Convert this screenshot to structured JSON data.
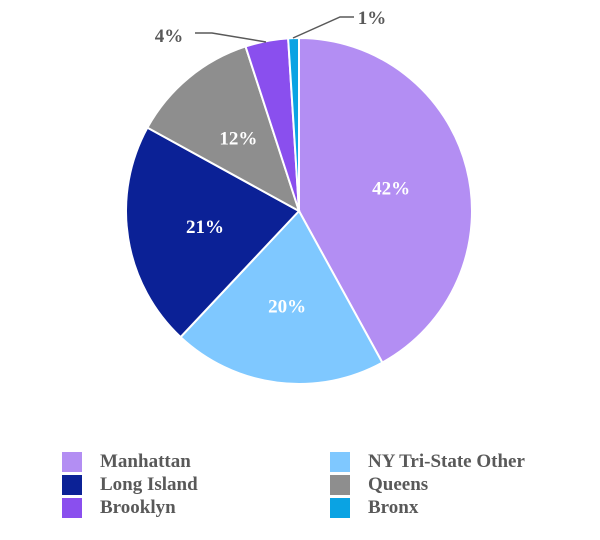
{
  "chart_data": {
    "type": "pie",
    "start_angle": "top, clockwise",
    "legend_position": "bottom",
    "slices": [
      {
        "name": "Manhattan",
        "value": 42,
        "label": "42%",
        "color": "#B38EF3",
        "label_color": "#FFFFFF"
      },
      {
        "name": "NY Tri-State Other",
        "value": 20,
        "label": "20%",
        "color": "#7FC8FF",
        "label_color": "#FFFFFF"
      },
      {
        "name": "Long Island",
        "value": 21,
        "label": "21%",
        "color": "#0B2196",
        "label_color": "#FFFFFF"
      },
      {
        "name": "Queens",
        "value": 12,
        "label": "12%",
        "color": "#8E8E8E",
        "label_color": "#FFFFFF"
      },
      {
        "name": "Brooklyn",
        "value": 4,
        "label": "4%",
        "color": "#8A4FEE",
        "label_color": "#595959"
      },
      {
        "name": "Bronx",
        "value": 1,
        "label": "1%",
        "color": "#0AA3E3",
        "label_color": "#595959"
      }
    ]
  }
}
